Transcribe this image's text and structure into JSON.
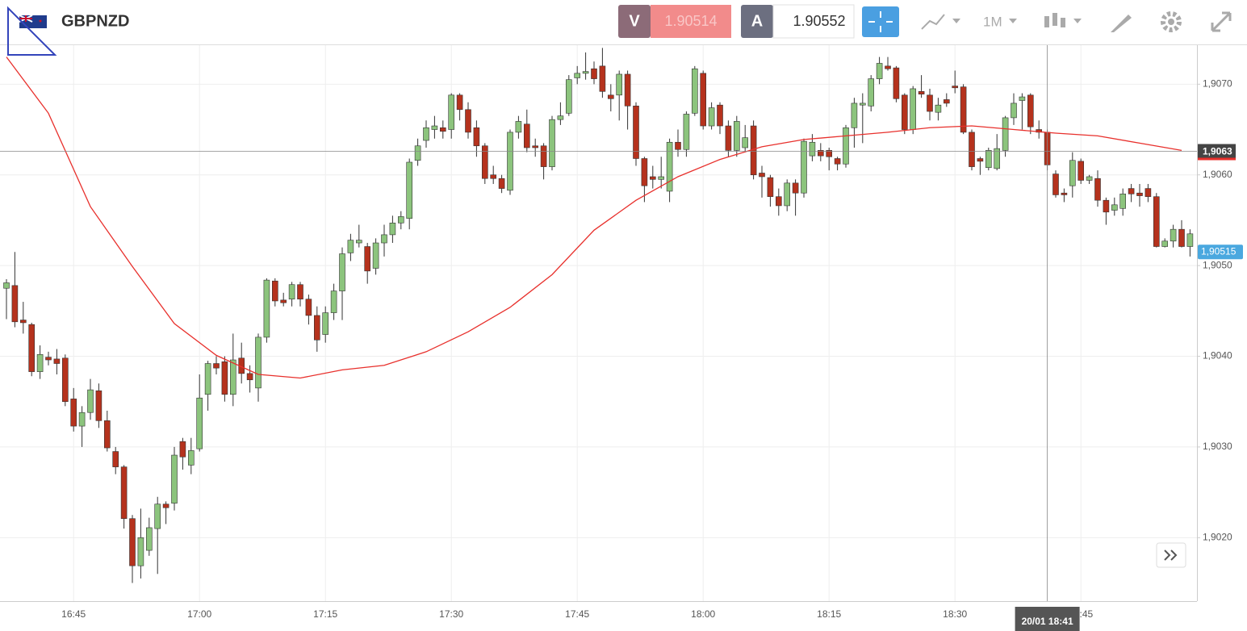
{
  "toolbar": {
    "symbol": "GBPNZD",
    "bid_tag": "V",
    "bid": "1.90514",
    "ask_tag": "A",
    "ask": "1.90552",
    "interval": "1M"
  },
  "chart_data": {
    "type": "candlestick",
    "x": [
      "16:37",
      "16:38",
      "16:39",
      "16:40",
      "16:41",
      "16:42",
      "16:43",
      "16:44",
      "16:45",
      "16:46",
      "16:47",
      "16:48",
      "16:49",
      "16:50",
      "16:51",
      "16:52",
      "16:53",
      "16:54",
      "16:55",
      "16:56",
      "16:57",
      "16:58",
      "16:59",
      "17:00",
      "17:01",
      "17:02",
      "17:03",
      "17:04",
      "17:05",
      "17:06",
      "17:07",
      "17:08",
      "17:09",
      "17:10",
      "17:11",
      "17:12",
      "17:13",
      "17:14",
      "17:15",
      "17:16",
      "17:17",
      "17:18",
      "17:19",
      "17:20",
      "17:21",
      "17:22",
      "17:23",
      "17:24",
      "17:25",
      "17:26",
      "17:27",
      "17:28",
      "17:29",
      "17:30",
      "17:31",
      "17:32",
      "17:33",
      "17:34",
      "17:35",
      "17:36",
      "17:37",
      "17:38",
      "17:39",
      "17:40",
      "17:41",
      "17:42",
      "17:43",
      "17:44",
      "17:45",
      "17:46",
      "17:47",
      "17:48",
      "17:49",
      "17:50",
      "17:51",
      "17:52",
      "17:53",
      "17:54",
      "17:55",
      "17:56",
      "17:57",
      "17:58",
      "17:59",
      "18:00",
      "18:01",
      "18:02",
      "18:03",
      "18:04",
      "18:05",
      "18:06",
      "18:07",
      "18:08",
      "18:09",
      "18:10",
      "18:11",
      "18:12",
      "18:13",
      "18:14",
      "18:15",
      "18:16",
      "18:17",
      "18:18",
      "18:19",
      "18:20",
      "18:21",
      "18:22",
      "18:23",
      "18:24",
      "18:25",
      "18:26",
      "18:27",
      "18:28",
      "18:29",
      "18:30",
      "18:31",
      "18:32",
      "18:33",
      "18:34",
      "18:35",
      "18:36",
      "18:37",
      "18:38",
      "18:39",
      "18:40",
      "18:41",
      "18:42",
      "18:43",
      "18:44",
      "18:45",
      "18:46",
      "18:47",
      "18:48",
      "18:49",
      "18:50",
      "18:51",
      "18:52",
      "18:53",
      "18:54",
      "18:55",
      "18:56",
      "18:57",
      "18:58"
    ],
    "open": [
      1.90475,
      1.90478,
      1.9044,
      1.90435,
      1.90383,
      1.90399,
      1.90397,
      1.90398,
      1.90353,
      1.90323,
      1.90338,
      1.90362,
      1.90329,
      1.90295,
      1.90278,
      1.90221,
      1.90169,
      1.90186,
      1.9021,
      1.90237,
      1.90238,
      1.90306,
      1.9028,
      1.90298,
      1.90358,
      1.90392,
      1.90394,
      1.90358,
      1.90398,
      1.90381,
      1.90365,
      1.90421,
      1.90483,
      1.90462,
      1.90463,
      1.90479,
      1.90463,
      1.90445,
      1.90424,
      1.90448,
      1.90472,
      1.90514,
      1.90525,
      1.90521,
      1.90497,
      1.90525,
      1.90534,
      1.90547,
      1.90552,
      1.90616,
      1.90638,
      1.9065,
      1.90652,
      1.9065,
      1.90688,
      1.90672,
      1.90652,
      1.90632,
      1.906,
      1.90596,
      1.90583,
      1.90647,
      1.90656,
      1.90632,
      1.90632,
      1.90609,
      1.90661,
      1.90668,
      1.90707,
      1.90712,
      1.90717,
      1.9072,
      1.90688,
      1.90688,
      1.90711,
      1.90676,
      1.90618,
      1.90598,
      1.90595,
      1.90582,
      1.90636,
      1.90628,
      1.90668,
      1.90712,
      1.90654,
      1.90677,
      1.90654,
      1.90627,
      1.9063,
      1.90654,
      1.90602,
      1.90597,
      1.90576,
      1.90566,
      1.90591,
      1.9058,
      1.90621,
      1.90627,
      1.90627,
      1.90618,
      1.90612,
      1.90652,
      1.90677,
      1.90676,
      1.90706,
      1.9072,
      1.90718,
      1.90688,
      1.9065,
      1.90692,
      1.90688,
      1.90669,
      1.90683,
      1.90698,
      1.90697,
      1.90647,
      1.90618,
      1.90608,
      1.90607,
      1.90627,
      1.90663,
      1.90682,
      1.90688,
      1.9065,
      1.90647,
      1.90601,
      1.9058,
      1.90588,
      1.90615,
      1.90594,
      1.90596,
      1.90572,
      1.90561,
      1.90563,
      1.90585,
      1.9058,
      1.90585,
      1.90576,
      1.90521,
      1.90527,
      1.9054,
      1.90521
    ],
    "high": [
      1.90485,
      1.90515,
      1.9046,
      1.90437,
      1.90412,
      1.90405,
      1.90408,
      1.90402,
      1.90365,
      1.90345,
      1.90375,
      1.9037,
      1.9034,
      1.903,
      1.9028,
      1.90225,
      1.90232,
      1.90222,
      1.90245,
      1.9024,
      1.903,
      1.9031,
      1.9031,
      1.9038,
      1.90395,
      1.904,
      1.904,
      1.90425,
      1.90415,
      1.9039,
      1.90425,
      1.90486,
      1.90486,
      1.9047,
      1.90482,
      1.90482,
      1.90468,
      1.90455,
      1.90455,
      1.9048,
      1.9052,
      1.90535,
      1.90545,
      1.90525,
      1.9053,
      1.90545,
      1.90555,
      1.9056,
      1.90618,
      1.9064,
      1.9066,
      1.90665,
      1.9066,
      1.9069,
      1.9069,
      1.9068,
      1.9066,
      1.90635,
      1.9061,
      1.906,
      1.9065,
      1.90665,
      1.90672,
      1.9064,
      1.90635,
      1.90665,
      1.9068,
      1.9071,
      1.9072,
      1.90735,
      1.90725,
      1.9074,
      1.907,
      1.90715,
      1.90715,
      1.9068,
      1.9062,
      1.9061,
      1.9062,
      1.9064,
      1.9065,
      1.9067,
      1.9072,
      1.90715,
      1.9068,
      1.9068,
      1.9066,
      1.90665,
      1.90655,
      1.9066,
      1.9061,
      1.906,
      1.90585,
      1.90595,
      1.90595,
      1.9064,
      1.90645,
      1.90635,
      1.9063,
      1.9062,
      1.90655,
      1.90685,
      1.9069,
      1.9071,
      1.9073,
      1.9073,
      1.9072,
      1.9069,
      1.90698,
      1.9071,
      1.90695,
      1.90685,
      1.9069,
      1.90715,
      1.907,
      1.9065,
      1.9062,
      1.9063,
      1.90645,
      1.90665,
      1.9069,
      1.9069,
      1.9069,
      1.9066,
      1.9065,
      1.90605,
      1.90585,
      1.90625,
      1.90618,
      1.906,
      1.90605,
      1.90575,
      1.90575,
      1.90585,
      1.9059,
      1.9059,
      1.9059,
      1.9058,
      1.9053,
      1.90545,
      1.9055,
      1.9054
    ],
    "low": [
      1.90441,
      1.90432,
      1.90425,
      1.90378,
      1.90375,
      1.9039,
      1.9038,
      1.90345,
      1.90317,
      1.903,
      1.9033,
      1.90321,
      1.90295,
      1.9027,
      1.9021,
      1.9015,
      1.90155,
      1.9018,
      1.9016,
      1.90215,
      1.9023,
      1.90275,
      1.9027,
      1.90295,
      1.9034,
      1.9038,
      1.9035,
      1.90345,
      1.9037,
      1.9036,
      1.9035,
      1.90415,
      1.90455,
      1.90455,
      1.90455,
      1.90455,
      1.90435,
      1.90405,
      1.90415,
      1.9044,
      1.9044,
      1.90505,
      1.9052,
      1.9048,
      1.9049,
      1.9051,
      1.90525,
      1.9054,
      1.9054,
      1.9061,
      1.9063,
      1.9064,
      1.9064,
      1.9064,
      1.9066,
      1.9064,
      1.9062,
      1.9059,
      1.9059,
      1.9058,
      1.90578,
      1.9064,
      1.90625,
      1.9062,
      1.90595,
      1.90605,
      1.90655,
      1.90665,
      1.907,
      1.90705,
      1.907,
      1.90685,
      1.9067,
      1.9066,
      1.9065,
      1.9061,
      1.9057,
      1.90585,
      1.90585,
      1.9057,
      1.9062,
      1.9062,
      1.90665,
      1.9065,
      1.9065,
      1.90645,
      1.9062,
      1.9062,
      1.90625,
      1.90595,
      1.90575,
      1.90565,
      1.90555,
      1.9056,
      1.90555,
      1.90575,
      1.90615,
      1.90615,
      1.90605,
      1.90605,
      1.90608,
      1.9063,
      1.90635,
      1.9067,
      1.907,
      1.90715,
      1.9068,
      1.90645,
      1.90645,
      1.90685,
      1.9066,
      1.9066,
      1.90675,
      1.9069,
      1.90645,
      1.90605,
      1.906,
      1.90605,
      1.90605,
      1.9062,
      1.90655,
      1.9065,
      1.90645,
      1.9064,
      1.90605,
      1.90575,
      1.9057,
      1.90575,
      1.9059,
      1.9059,
      1.90565,
      1.90545,
      1.90555,
      1.90555,
      1.9057,
      1.90565,
      1.9057,
      1.9052,
      1.9052,
      1.9052,
      1.9052,
      1.9051
    ],
    "close": [
      1.90481,
      1.90438,
      1.90437,
      1.90383,
      1.90402,
      1.90396,
      1.90392,
      1.9035,
      1.90323,
      1.90338,
      1.90363,
      1.90329,
      1.90299,
      1.90278,
      1.90221,
      1.90169,
      1.902,
      1.90211,
      1.90237,
      1.90233,
      1.90291,
      1.90289,
      1.90296,
      1.90354,
      1.90392,
      1.90387,
      1.90358,
      1.90396,
      1.90381,
      1.90374,
      1.90421,
      1.90484,
      1.90461,
      1.90459,
      1.90479,
      1.90463,
      1.90445,
      1.90418,
      1.90448,
      1.90472,
      1.90513,
      1.90528,
      1.90528,
      1.90494,
      1.90525,
      1.90534,
      1.90547,
      1.90554,
      1.90614,
      1.90632,
      1.90652,
      1.90654,
      1.90648,
      1.90688,
      1.90672,
      1.90647,
      1.90632,
      1.90596,
      1.90596,
      1.90585,
      1.90647,
      1.90659,
      1.9063,
      1.9063,
      1.90609,
      1.90661,
      1.90665,
      1.90705,
      1.90712,
      1.90714,
      1.90706,
      1.90692,
      1.90684,
      1.90711,
      1.90676,
      1.90618,
      1.90588,
      1.90595,
      1.90598,
      1.90636,
      1.90628,
      1.90667,
      1.90717,
      1.90654,
      1.90674,
      1.90654,
      1.90627,
      1.90659,
      1.90641,
      1.906,
      1.90598,
      1.90576,
      1.90566,
      1.90591,
      1.9058,
      1.90637,
      1.90636,
      1.90621,
      1.9062,
      1.90612,
      1.90652,
      1.90679,
      1.90679,
      1.90706,
      1.90723,
      1.90717,
      1.90684,
      1.9065,
      1.90695,
      1.90689,
      1.9067,
      1.90677,
      1.90679,
      1.90696,
      1.90647,
      1.90609,
      1.90615,
      1.90627,
      1.90629,
      1.90663,
      1.90679,
      1.90686,
      1.90653,
      1.90647,
      1.90611,
      1.90578,
      1.90578,
      1.90616,
      1.90594,
      1.90598,
      1.90572,
      1.90559,
      1.90567,
      1.90579,
      1.90579,
      1.90577,
      1.90576,
      1.90521,
      1.90527,
      1.9054,
      1.90521,
      1.90535
    ],
    "up_color": "#8cc47d",
    "down_color": "#b5321d",
    "moving_average": {
      "color": "#e8302c",
      "x": [
        "16:37",
        "16:42",
        "16:47",
        "16:52",
        "16:57",
        "17:02",
        "17:07",
        "17:12",
        "17:17",
        "17:22",
        "17:27",
        "17:32",
        "17:37",
        "17:42",
        "17:47",
        "17:52",
        "17:57",
        "18:02",
        "18:07",
        "18:12",
        "18:17",
        "18:22",
        "18:27",
        "18:32",
        "18:37",
        "18:42",
        "18:47",
        "18:52",
        "18:57"
      ],
      "values": [
        1.9073,
        1.90668,
        1.90565,
        1.90499,
        1.90436,
        1.90401,
        1.9038,
        1.90376,
        1.90385,
        1.9039,
        1.90405,
        1.90427,
        1.90454,
        1.9049,
        1.90539,
        1.90572,
        1.90598,
        1.90617,
        1.90631,
        1.90639,
        1.90643,
        1.90647,
        1.90652,
        1.90654,
        1.9065,
        1.90646,
        1.90643,
        1.90635,
        1.90627
      ]
    },
    "ylim": [
      1.9013,
      1.90743
    ],
    "yticks": [
      {
        "value": 1.902,
        "label": "1,9020"
      },
      {
        "value": 1.903,
        "label": "1,9030"
      },
      {
        "value": 1.904,
        "label": "1,9040"
      },
      {
        "value": 1.905,
        "label": "1,9050"
      },
      {
        "value": 1.906,
        "label": "1,9060"
      },
      {
        "value": 1.907,
        "label": "1,9070"
      }
    ],
    "xticks": [
      "16:45",
      "17:00",
      "17:15",
      "17:30",
      "17:45",
      "18:00",
      "18:15",
      "18:30",
      "18:45"
    ],
    "grid": true,
    "last_price": {
      "value": 1.90515,
      "label": "1,90515"
    },
    "crosshair": {
      "label": "20/01 18:41",
      "y": {
        "value": 1.90626,
        "label": "1,9063"
      }
    }
  }
}
